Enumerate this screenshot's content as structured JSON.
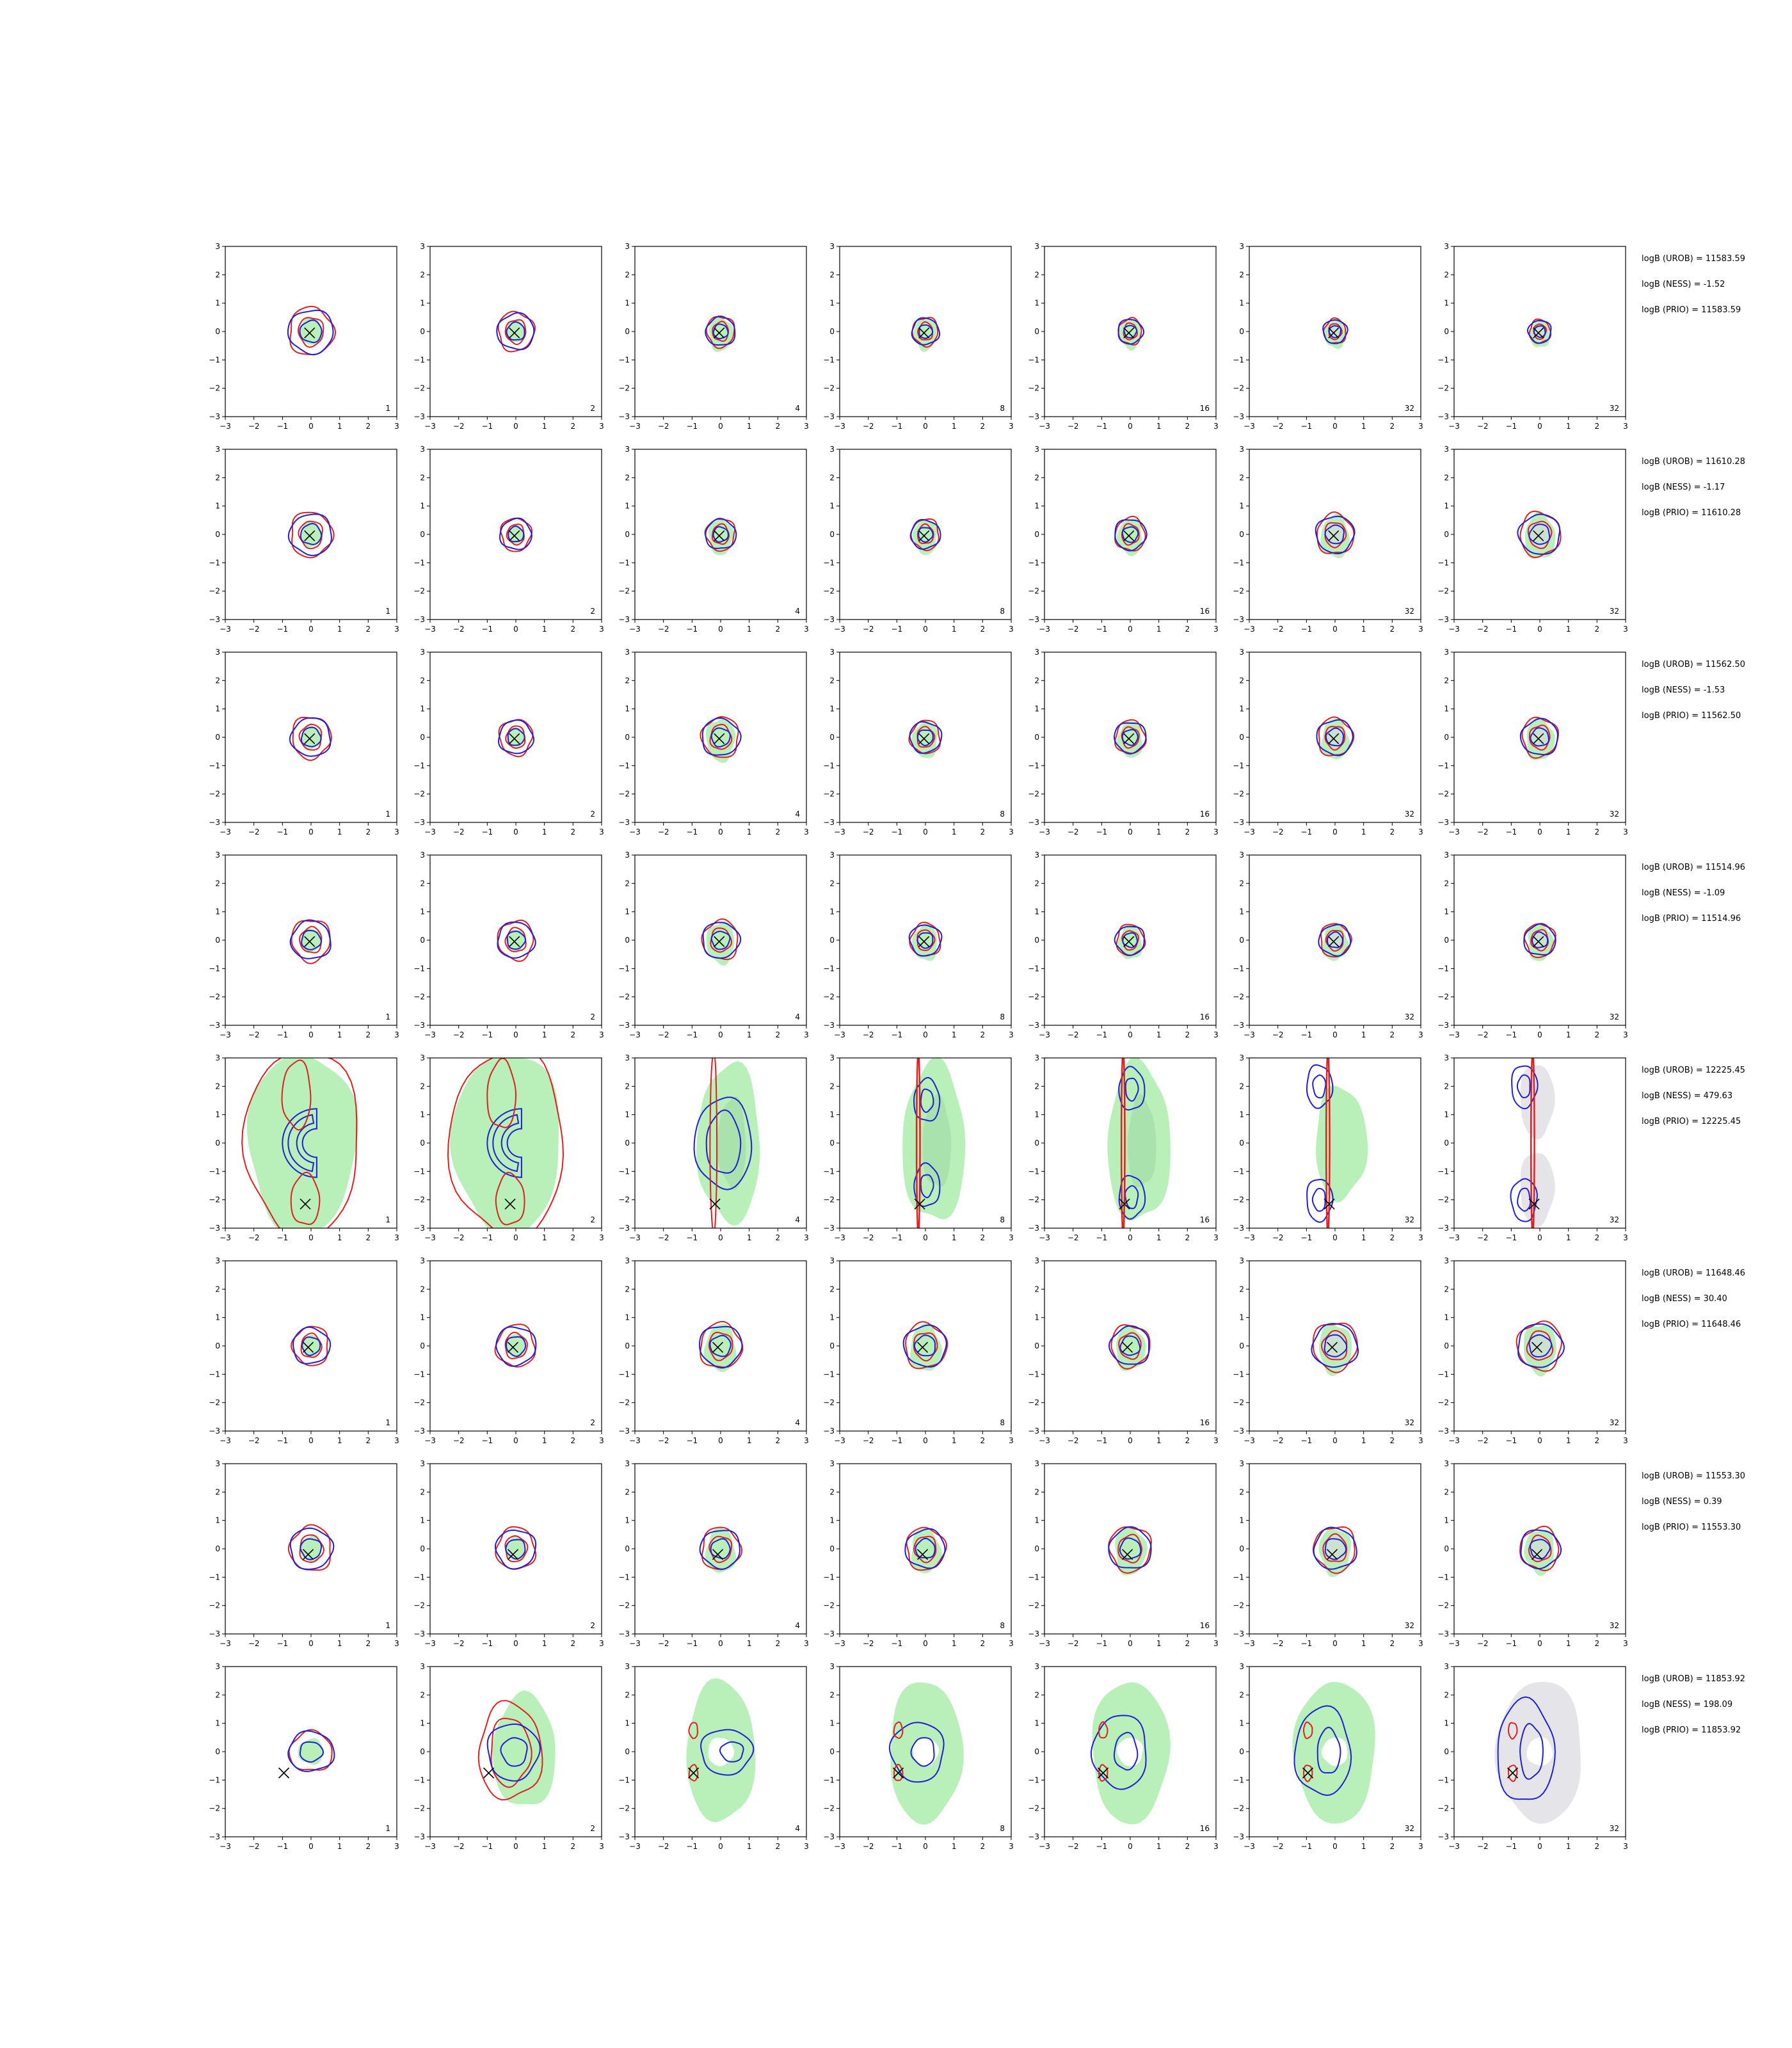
{
  "chart_data": {
    "type": "contour-grid",
    "rows": 8,
    "cols": 7,
    "xlim": [
      -3,
      3
    ],
    "ylim": [
      -3,
      3
    ],
    "xticks": [
      "−3",
      "−2",
      "−1",
      "0",
      "1",
      "2",
      "3"
    ],
    "yticks": [
      "3",
      "2",
      "1",
      "0",
      "−1",
      "−2",
      "−3"
    ],
    "column_labels": [
      "1",
      "2",
      "4",
      "8",
      "16",
      "32",
      "32"
    ],
    "colors": {
      "blue_contour": "#1f1fd6",
      "red_contour": "#e02020",
      "green_fill": "#b9efb9",
      "green_fill_inner": "#9fd9a5",
      "grey_fill": "#d9d9df",
      "marker": "#000000"
    },
    "marker_symbol": "×",
    "rows_info": [
      {
        "annotations": [
          "logB (UROB) = 11583.59",
          "logB (NESS) = -1.52",
          "logB (PRIO) = 11583.59"
        ],
        "marker": [
          -0.05,
          -0.05
        ],
        "shape": "compact",
        "scale": [
          0.55,
          0.4,
          0.26,
          0.22,
          0.18,
          0.16,
          0.14
        ]
      },
      {
        "annotations": [
          "logB (UROB) = 11610.28",
          "logB (NESS) = -1.17",
          "logB (PRIO) = 11610.28"
        ],
        "marker": [
          -0.05,
          -0.05
        ],
        "shape": "compact",
        "scale": [
          0.5,
          0.3,
          0.28,
          0.26,
          0.3,
          0.42,
          0.48
        ]
      },
      {
        "annotations": [
          "logB (UROB) = 11562.50",
          "logB (NESS) = -1.53",
          "logB (PRIO) = 11562.50"
        ],
        "marker": [
          -0.05,
          -0.05
        ],
        "shape": "compact",
        "scale": [
          0.45,
          0.35,
          0.42,
          0.3,
          0.3,
          0.38,
          0.4
        ]
      },
      {
        "annotations": [
          "logB (UROB) = 11514.96",
          "logB (NESS) = -1.09",
          "logB (PRIO) = 11514.96"
        ],
        "marker": [
          -0.05,
          -0.05
        ],
        "shape": "compact",
        "scale": [
          0.45,
          0.4,
          0.4,
          0.3,
          0.26,
          0.3,
          0.3
        ]
      },
      {
        "annotations": [
          "logB (UROB) = 12225.45",
          "logB (NESS) = 479.63",
          "logB (PRIO) = 12225.45"
        ],
        "marker": [
          -0.2,
          -2.15
        ],
        "shape": "banana",
        "scale": [
          1,
          1,
          1,
          1,
          1,
          1,
          1
        ]
      },
      {
        "annotations": [
          "logB (UROB) = 11648.46",
          "logB (NESS) = 30.40",
          "logB (PRIO) = 11648.46"
        ],
        "marker": [
          -0.1,
          -0.05
        ],
        "shape": "compact",
        "scale": [
          0.4,
          0.45,
          0.5,
          0.5,
          0.45,
          0.55,
          0.55
        ]
      },
      {
        "annotations": [
          "logB (UROB) = 11553.30",
          "logB (NESS) = 0.39",
          "logB (PRIO) = 11553.30"
        ],
        "marker": [
          -0.1,
          -0.2
        ],
        "shape": "compact",
        "scale": [
          0.5,
          0.45,
          0.45,
          0.45,
          0.5,
          0.5,
          0.45
        ]
      },
      {
        "annotations": [
          "logB (UROB) = 11853.92",
          "logB (NESS) = 198.09",
          "logB (PRIO) = 11853.92"
        ],
        "marker": [
          -0.95,
          -0.75
        ],
        "shape": "ring",
        "scale": [
          1,
          1,
          1,
          1,
          1,
          1,
          1
        ]
      }
    ]
  }
}
